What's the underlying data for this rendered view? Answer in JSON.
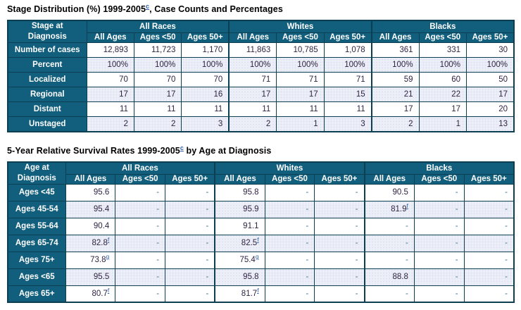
{
  "colors": {
    "header_bg": "#115e7d",
    "border": "#0d3f52",
    "stripe_bg": "#edeff8",
    "data_text": "#2f2342",
    "dash_text": "#44708a",
    "footnote_link": "#2b5cad",
    "header_text": "#ffffff",
    "title_text": "#000000"
  },
  "tables": [
    {
      "title_prefix": "Stage Distribution (%) 1999-2005",
      "title_sup": "c",
      "title_suffix": ", Case Counts and Percentages",
      "corner_label_lines": [
        "Stage at",
        "Diagnosis"
      ],
      "groups": [
        "All Races",
        "Whites",
        "Blacks"
      ],
      "sub_headers": [
        "All Ages",
        "Ages <50",
        "Ages 50+"
      ],
      "rows": [
        {
          "label": "Number of cases",
          "cells": [
            "12,893",
            "11,723",
            "1,170",
            "11,863",
            "10,785",
            "1,078",
            "361",
            "331",
            "30"
          ]
        },
        {
          "label": "Percent",
          "cells": [
            "100%",
            "100%",
            "100%",
            "100%",
            "100%",
            "100%",
            "100%",
            "100%",
            "100%"
          ]
        },
        {
          "label": "Localized",
          "cells": [
            "70",
            "70",
            "70",
            "71",
            "71",
            "71",
            "59",
            "60",
            "50"
          ]
        },
        {
          "label": "Regional",
          "cells": [
            "17",
            "17",
            "16",
            "17",
            "17",
            "15",
            "21",
            "22",
            "17"
          ]
        },
        {
          "label": "Distant",
          "cells": [
            "11",
            "11",
            "11",
            "11",
            "11",
            "11",
            "17",
            "17",
            "20"
          ]
        },
        {
          "label": "Unstaged",
          "cells": [
            "2",
            "2",
            "3",
            "2",
            "1",
            "3",
            "2",
            "1",
            "13"
          ]
        }
      ]
    },
    {
      "title_prefix": "5-Year Relative Survival Rates 1999-2005",
      "title_sup": "c",
      "title_suffix": " by Age at Diagnosis",
      "corner_label_lines": [
        "Age at",
        "Diagnosis"
      ],
      "groups": [
        "All Races",
        "Whites",
        "Blacks"
      ],
      "sub_headers": [
        "All Ages",
        "Ages <50",
        "Ages 50+"
      ],
      "rows": [
        {
          "label": "Ages <45",
          "cells": [
            "95.6",
            "-",
            "-",
            "95.8",
            "-",
            "-",
            "90.5",
            "-",
            "-"
          ]
        },
        {
          "label": "Ages 45-54",
          "cells": [
            "95.4",
            "-",
            "-",
            "95.9",
            "-",
            "-",
            {
              "v": "81.9",
              "sup": "f"
            },
            "-",
            "-"
          ]
        },
        {
          "label": "Ages 55-64",
          "cells": [
            "90.4",
            "-",
            "-",
            "91.1",
            "-",
            "-",
            "-",
            "-",
            "-"
          ]
        },
        {
          "label": "Ages 65-74",
          "cells": [
            {
              "v": "82.8",
              "sup": "f"
            },
            "-",
            "-",
            {
              "v": "82.5",
              "sup": "f"
            },
            "-",
            "-",
            "-",
            "-",
            "-"
          ]
        },
        {
          "label": "Ages 75+",
          "cells": [
            {
              "v": "73.8",
              "sup": "g"
            },
            "-",
            "-",
            {
              "v": "75.4",
              "sup": "g"
            },
            "-",
            "-",
            "-",
            "-",
            "-"
          ]
        },
        {
          "label": "Ages <65",
          "cells": [
            "95.5",
            "-",
            "-",
            "95.8",
            "-",
            "-",
            "88.8",
            "-",
            "-"
          ]
        },
        {
          "label": "Ages 65+",
          "cells": [
            {
              "v": "80.7",
              "sup": "f"
            },
            "-",
            "-",
            {
              "v": "81.7",
              "sup": "f"
            },
            "-",
            "-",
            "-",
            "-",
            "-"
          ]
        }
      ]
    }
  ]
}
